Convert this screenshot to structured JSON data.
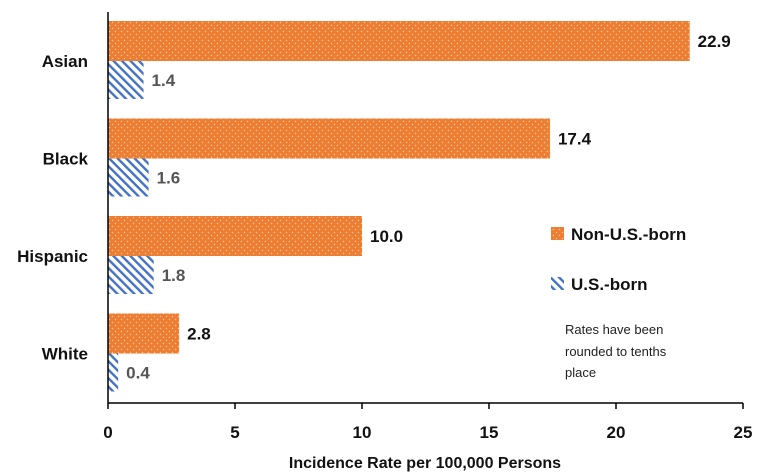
{
  "chart_data": {
    "type": "bar",
    "orientation": "horizontal",
    "categories": [
      "Asian",
      "Black",
      "Hispanic",
      "White"
    ],
    "series": [
      {
        "name": "Non-U.S.-born",
        "values": [
          22.9,
          17.4,
          10.0,
          2.8
        ],
        "color": "#ED7D31",
        "pattern": "dotted"
      },
      {
        "name": "U.S.-born",
        "values": [
          1.4,
          1.6,
          1.8,
          0.4
        ],
        "color": "#4472C4",
        "pattern": "diagonal-hatch"
      }
    ],
    "value_labels": {
      "Non-U.S.-born": [
        "22.9",
        "17.4",
        "10.0",
        "2.8"
      ],
      "U.S.-born": [
        "1.4",
        "1.6",
        "1.8",
        "0.4"
      ]
    },
    "xlabel": "Incidence Rate per 100,000 Persons",
    "ylabel": "",
    "xlim": [
      0,
      25
    ],
    "xticks": [
      "0",
      "5",
      "10",
      "15",
      "20",
      "25"
    ],
    "grid": false,
    "legend_position": "right",
    "note": [
      "Rates have been",
      "rounded to tenths",
      "place"
    ]
  }
}
